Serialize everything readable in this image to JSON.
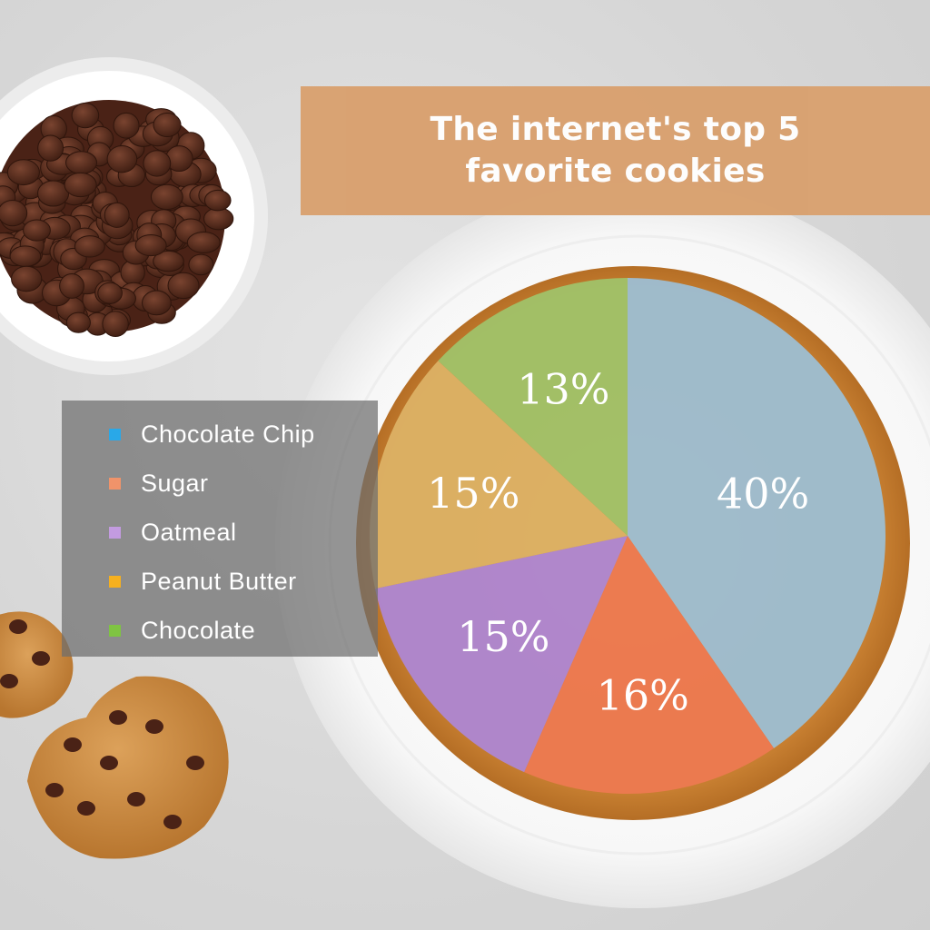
{
  "title": {
    "line1": "The internet's top 5",
    "line2": "favorite cookies"
  },
  "colors": {
    "banner": "#d9a16f",
    "chocolate_chip": "#29a8e8",
    "sugar": "#f0936a",
    "oatmeal": "#c39be0",
    "peanut_butter": "#f6b01e",
    "chocolate": "#7fc442"
  },
  "legend": [
    {
      "label": "Chocolate Chip",
      "color": "#29a8e8"
    },
    {
      "label": "Sugar",
      "color": "#f0936a"
    },
    {
      "label": "Oatmeal",
      "color": "#c39be0"
    },
    {
      "label": "Peanut Butter",
      "color": "#f6b01e"
    },
    {
      "label": "Chocolate",
      "color": "#7fc442"
    }
  ],
  "chart_data": {
    "type": "pie",
    "title": "The internet's top 5 favorite cookies",
    "legend_position": "left",
    "slices": [
      {
        "label": "Chocolate Chip",
        "value": 40,
        "display": "40%",
        "color": "#9cc0d6"
      },
      {
        "label": "Sugar",
        "value": 16,
        "display": "16%",
        "color": "#ee7a52"
      },
      {
        "label": "Oatmeal",
        "value": 15,
        "display": "15%",
        "color": "#ad86d6"
      },
      {
        "label": "Peanut Butter",
        "value": 15,
        "display": "15%",
        "color": "#ddb366"
      },
      {
        "label": "Chocolate",
        "value": 13,
        "display": "13%",
        "color": "#9fc46a"
      }
    ]
  }
}
